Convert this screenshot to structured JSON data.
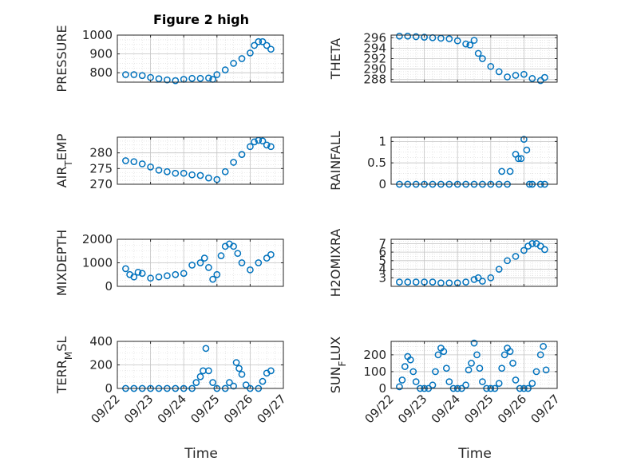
{
  "figure": {
    "title": "Figure 2 high",
    "xlabel": "Time",
    "x_ticks": [
      "09/22",
      "09/23",
      "09/24",
      "09/25",
      "09/26",
      "09/27"
    ],
    "marker_color": "#0072BD"
  },
  "chart_data": [
    {
      "type": "scatter",
      "title": "Figure 2 high",
      "ylabel": "PRESSURE",
      "xlim": [
        "09/22",
        "09/27"
      ],
      "ylim": [
        750,
        1000
      ],
      "y_ticks": [
        "800",
        "900",
        "1000"
      ],
      "y_tick_values": [
        800,
        900,
        1000
      ],
      "series": [
        {
          "x": [
            "09/22 06:00",
            "09/22 12:00",
            "09/22 18:00",
            "09/23 00:00",
            "09/23 06:00",
            "09/23 12:00",
            "09/23 18:00",
            "09/24 00:00",
            "09/24 06:00",
            "09/24 12:00",
            "09/24 18:00",
            "09/24 21:00",
            "09/25 00:00",
            "09/25 06:00",
            "09/25 12:00",
            "09/25 18:00",
            "09/26 00:00",
            "09/26 03:00",
            "09/26 06:00",
            "09/26 09:00",
            "09/26 12:00",
            "09/26 15:00"
          ],
          "y": [
            790,
            790,
            785,
            775,
            768,
            762,
            758,
            765,
            770,
            770,
            772,
            765,
            790,
            815,
            850,
            875,
            905,
            945,
            965,
            965,
            945,
            925
          ]
        }
      ]
    },
    {
      "type": "scatter",
      "ylabel": "THETA",
      "xlim": [
        "09/22",
        "09/27"
      ],
      "ylim": [
        287.5,
        296.5
      ],
      "y_ticks": [
        "288",
        "290",
        "292",
        "294",
        "296"
      ],
      "y_tick_values": [
        288,
        290,
        292,
        294,
        296
      ],
      "series": [
        {
          "x": [
            "09/22 06:00",
            "09/22 12:00",
            "09/22 18:00",
            "09/23 00:00",
            "09/23 06:00",
            "09/23 12:00",
            "09/23 18:00",
            "09/24 00:00",
            "09/24 06:00",
            "09/24 09:00",
            "09/24 12:00",
            "09/24 15:00",
            "09/24 18:00",
            "09/25 00:00",
            "09/25 06:00",
            "09/25 12:00",
            "09/25 18:00",
            "09/26 00:00",
            "09/26 06:00",
            "09/26 12:00",
            "09/26 15:00"
          ],
          "y": [
            296.3,
            296.3,
            296.2,
            296.1,
            296.0,
            295.9,
            295.8,
            295.4,
            294.8,
            294.6,
            295.5,
            293.0,
            292.0,
            290.5,
            289.5,
            288.5,
            288.8,
            289.0,
            288.2,
            287.8,
            288.4
          ]
        }
      ]
    },
    {
      "type": "scatter",
      "ylabel": "AIR_TEMP",
      "xlim": [
        "09/22",
        "09/27"
      ],
      "ylim": [
        270,
        285
      ],
      "y_ticks": [
        "270",
        "275",
        "280"
      ],
      "y_tick_values": [
        270,
        275,
        280
      ],
      "series": [
        {
          "x": [
            "09/22 06:00",
            "09/22 12:00",
            "09/22 18:00",
            "09/23 00:00",
            "09/23 06:00",
            "09/23 12:00",
            "09/23 18:00",
            "09/24 00:00",
            "09/24 06:00",
            "09/24 12:00",
            "09/24 18:00",
            "09/25 00:00",
            "09/25 06:00",
            "09/25 12:00",
            "09/25 18:00",
            "09/26 00:00",
            "09/26 03:00",
            "09/26 06:00",
            "09/26 09:00",
            "09/26 12:00",
            "09/26 15:00"
          ],
          "y": [
            277.5,
            277.2,
            276.5,
            275.5,
            274.5,
            274.0,
            273.5,
            273.5,
            273.0,
            272.8,
            272.0,
            271.5,
            274.0,
            277.0,
            279.5,
            282.0,
            283.5,
            284.0,
            283.8,
            282.5,
            282.0
          ]
        }
      ]
    },
    {
      "type": "scatter",
      "ylabel": "RAINFALL",
      "xlim": [
        "09/22",
        "09/27"
      ],
      "ylim": [
        0,
        1.1
      ],
      "y_ticks": [
        "0",
        "0.5",
        "1"
      ],
      "y_tick_values": [
        0,
        0.5,
        1
      ],
      "series": [
        {
          "x": [
            "09/22 06:00",
            "09/22 12:00",
            "09/22 18:00",
            "09/23 00:00",
            "09/23 06:00",
            "09/23 12:00",
            "09/23 18:00",
            "09/24 00:00",
            "09/24 06:00",
            "09/24 12:00",
            "09/24 18:00",
            "09/25 00:00",
            "09/25 06:00",
            "09/25 08:00",
            "09/25 12:00",
            "09/25 14:00",
            "09/25 18:00",
            "09/25 20:00",
            "09/25 22:00",
            "09/26 00:00",
            "09/26 02:00",
            "09/26 04:00",
            "09/26 06:00",
            "09/26 12:00",
            "09/26 15:00"
          ],
          "y": [
            0,
            0,
            0,
            0,
            0,
            0,
            0,
            0,
            0,
            0,
            0,
            0,
            0,
            0.3,
            0,
            0.3,
            0.7,
            0.6,
            0.6,
            1.05,
            0.8,
            0,
            0,
            0,
            0
          ]
        }
      ]
    },
    {
      "type": "scatter",
      "ylabel": "MIXDEPTH",
      "xlim": [
        "09/22",
        "09/27"
      ],
      "ylim": [
        0,
        2000
      ],
      "y_ticks": [
        "0",
        "1000",
        "2000"
      ],
      "y_tick_values": [
        0,
        1000,
        2000
      ],
      "series": [
        {
          "x": [
            "09/22 06:00",
            "09/22 09:00",
            "09/22 12:00",
            "09/22 15:00",
            "09/22 18:00",
            "09/23 00:00",
            "09/23 06:00",
            "09/23 12:00",
            "09/23 18:00",
            "09/24 00:00",
            "09/24 06:00",
            "09/24 12:00",
            "09/24 15:00",
            "09/24 18:00",
            "09/24 21:00",
            "09/25 00:00",
            "09/25 03:00",
            "09/25 06:00",
            "09/25 09:00",
            "09/25 12:00",
            "09/25 15:00",
            "09/25 18:00",
            "09/26 00:00",
            "09/26 06:00",
            "09/26 12:00",
            "09/26 15:00"
          ],
          "y": [
            750,
            500,
            400,
            600,
            550,
            350,
            400,
            450,
            500,
            550,
            900,
            1000,
            1200,
            800,
            300,
            500,
            1300,
            1700,
            1800,
            1700,
            1400,
            1000,
            700,
            1000,
            1200,
            1350
          ]
        }
      ]
    },
    {
      "type": "scatter",
      "ylabel": "H2OMIXRA",
      "xlim": [
        "09/22",
        "09/27"
      ],
      "ylim": [
        2,
        7.5
      ],
      "y_ticks": [
        "3",
        "4",
        "5",
        "6",
        "7"
      ],
      "y_tick_values": [
        3,
        4,
        5,
        6,
        7
      ],
      "series": [
        {
          "x": [
            "09/22 06:00",
            "09/22 12:00",
            "09/22 18:00",
            "09/23 00:00",
            "09/23 06:00",
            "09/23 12:00",
            "09/23 18:00",
            "09/24 00:00",
            "09/24 06:00",
            "09/24 12:00",
            "09/24 15:00",
            "09/24 18:00",
            "09/25 00:00",
            "09/25 06:00",
            "09/25 12:00",
            "09/25 18:00",
            "09/26 00:00",
            "09/26 03:00",
            "09/26 06:00",
            "09/26 09:00",
            "09/26 12:00",
            "09/26 15:00"
          ],
          "y": [
            2.5,
            2.5,
            2.5,
            2.5,
            2.5,
            2.4,
            2.4,
            2.4,
            2.5,
            2.8,
            3.0,
            2.6,
            3.0,
            4.0,
            5.0,
            5.5,
            6.2,
            6.7,
            7.0,
            7.0,
            6.7,
            6.3
          ]
        }
      ]
    },
    {
      "type": "scatter",
      "ylabel": "TERR_MSL",
      "xlim": [
        "09/22",
        "09/27"
      ],
      "ylim": [
        0,
        400
      ],
      "y_ticks": [
        "0",
        "200",
        "400"
      ],
      "y_tick_values": [
        0,
        200,
        400
      ],
      "series": [
        {
          "x": [
            "09/22 06:00",
            "09/22 12:00",
            "09/22 18:00",
            "09/23 00:00",
            "09/23 06:00",
            "09/23 12:00",
            "09/23 18:00",
            "09/24 00:00",
            "09/24 06:00",
            "09/24 09:00",
            "09/24 12:00",
            "09/24 14:00",
            "09/24 16:00",
            "09/24 18:00",
            "09/24 21:00",
            "09/25 00:00",
            "09/25 06:00",
            "09/25 09:00",
            "09/25 12:00",
            "09/25 14:00",
            "09/25 16:00",
            "09/25 18:00",
            "09/25 21:00",
            "09/26 00:00",
            "09/26 06:00",
            "09/26 09:00",
            "09/26 12:00",
            "09/26 15:00"
          ],
          "y": [
            0,
            0,
            0,
            0,
            0,
            0,
            0,
            0,
            0,
            50,
            100,
            150,
            340,
            150,
            50,
            0,
            0,
            50,
            20,
            220,
            170,
            120,
            30,
            0,
            0,
            60,
            130,
            150
          ]
        }
      ]
    },
    {
      "type": "scatter",
      "ylabel": "SUN_FLUX",
      "xlim": [
        "09/22",
        "09/27"
      ],
      "ylim": [
        0,
        280
      ],
      "y_ticks": [
        "0",
        "100",
        "200"
      ],
      "y_tick_values": [
        0,
        100,
        200
      ],
      "series": [
        {
          "x": [
            "09/22 06:00",
            "09/22 08:00",
            "09/22 10:00",
            "09/22 12:00",
            "09/22 14:00",
            "09/22 16:00",
            "09/22 18:00",
            "09/22 21:00",
            "09/23 00:00",
            "09/23 03:00",
            "09/23 06:00",
            "09/23 08:00",
            "09/23 10:00",
            "09/23 12:00",
            "09/23 14:00",
            "09/23 16:00",
            "09/23 18:00",
            "09/23 21:00",
            "09/24 00:00",
            "09/24 03:00",
            "09/24 06:00",
            "09/24 08:00",
            "09/24 10:00",
            "09/24 12:00",
            "09/24 14:00",
            "09/24 16:00",
            "09/24 18:00",
            "09/24 21:00",
            "09/25 00:00",
            "09/25 03:00",
            "09/25 06:00",
            "09/25 08:00",
            "09/25 10:00",
            "09/25 12:00",
            "09/25 14:00",
            "09/25 16:00",
            "09/25 18:00",
            "09/25 21:00",
            "09/26 00:00",
            "09/26 03:00",
            "09/26 06:00",
            "09/26 09:00",
            "09/26 12:00",
            "09/26 14:00",
            "09/26 16:00"
          ],
          "y": [
            10,
            50,
            130,
            190,
            170,
            100,
            40,
            0,
            0,
            0,
            20,
            100,
            200,
            240,
            220,
            120,
            40,
            0,
            0,
            0,
            20,
            110,
            150,
            270,
            200,
            120,
            40,
            0,
            0,
            0,
            30,
            120,
            200,
            240,
            220,
            150,
            50,
            0,
            0,
            0,
            30,
            100,
            200,
            250,
            110
          ]
        }
      ]
    }
  ]
}
